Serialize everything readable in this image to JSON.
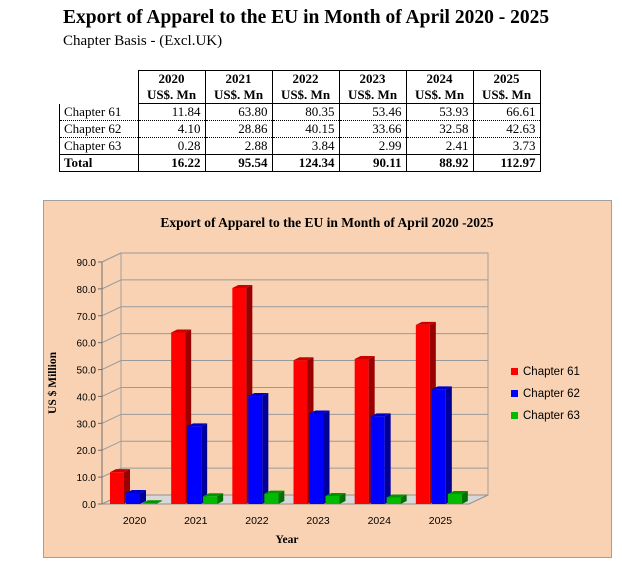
{
  "title": "Export of Apparel to the EU in Month of April 2020 - 2025",
  "subtitle": "Chapter Basis - (Excl.UK)",
  "table": {
    "years": [
      "2020",
      "2021",
      "2022",
      "2023",
      "2024",
      "2025"
    ],
    "unit": "US$. Mn",
    "rows": [
      {
        "label": "Chapter 61",
        "values": [
          "11.84",
          "63.80",
          "80.35",
          "53.46",
          "53.93",
          "66.61"
        ]
      },
      {
        "label": "Chapter 62",
        "values": [
          "4.10",
          "28.86",
          "40.15",
          "33.66",
          "32.58",
          "42.63"
        ]
      },
      {
        "label": "Chapter 63",
        "values": [
          "0.28",
          "2.88",
          "3.84",
          "2.99",
          "2.41",
          "3.73"
        ]
      }
    ],
    "total": {
      "label": "Total",
      "values": [
        "16.22",
        "95.54",
        "124.34",
        "90.11",
        "88.92",
        "112.97"
      ]
    }
  },
  "colors": {
    "chapter61": "#ff0000",
    "chapter62": "#0000ff",
    "chapter63": "#00bb00",
    "background": "#f9d2b3"
  },
  "chart_data": {
    "type": "bar",
    "title": "Export of Apparel to the EU in Month of April 2020 -2025",
    "xlabel": "Year",
    "ylabel": "US $ Million",
    "categories": [
      "2020",
      "2021",
      "2022",
      "2023",
      "2024",
      "2025"
    ],
    "ylim": [
      0,
      90
    ],
    "yticks": [
      "0.0",
      "10.0",
      "20.0",
      "30.0",
      "40.0",
      "50.0",
      "60.0",
      "70.0",
      "80.0",
      "90.0"
    ],
    "grid": true,
    "legend_position": "right",
    "series": [
      {
        "name": "Chapter 61",
        "values": [
          11.84,
          63.8,
          80.35,
          53.46,
          53.93,
          66.61
        ]
      },
      {
        "name": "Chapter 62",
        "values": [
          4.1,
          28.86,
          40.15,
          33.66,
          32.58,
          42.63
        ]
      },
      {
        "name": "Chapter 63",
        "values": [
          0.28,
          2.88,
          3.84,
          2.99,
          2.41,
          3.73
        ]
      }
    ]
  }
}
